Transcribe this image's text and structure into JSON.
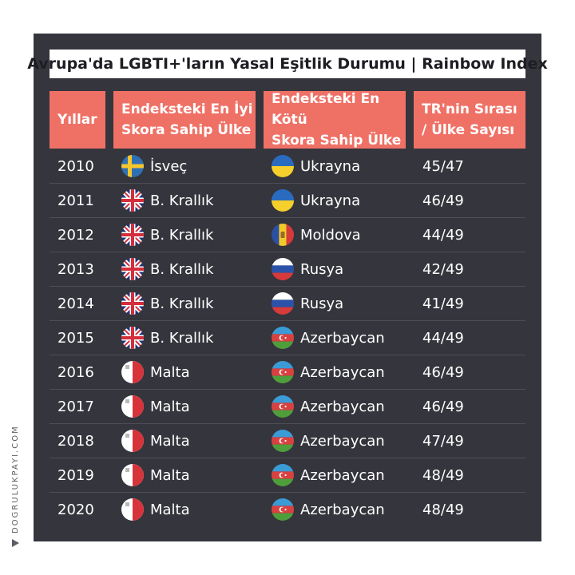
{
  "title": "Avrupa'da LGBTI+'ların Yasal Eşitlik Durumu | Rainbow Index",
  "headers": {
    "years": "Yıllar",
    "best_line1": "Endeksteki En İyi",
    "best_line2": "Skora Sahip Ülke",
    "worst_line1": "Endeksteki En Kötü",
    "worst_line2": "Skora Sahip Ülke",
    "tr_line1": "TR'nin Sırası",
    "tr_line2": "/ Ülke Sayısı"
  },
  "rows": [
    {
      "year": "2010",
      "best": "İsveç",
      "best_flag": "sweden-flag-icon",
      "worst": "Ukrayna",
      "worst_flag": "ukraine-flag-icon",
      "rank": "45/47"
    },
    {
      "year": "2011",
      "best": "B. Krallık",
      "best_flag": "uk-flag-icon",
      "worst": "Ukrayna",
      "worst_flag": "ukraine-flag-icon",
      "rank": "46/49"
    },
    {
      "year": "2012",
      "best": "B. Krallık",
      "best_flag": "uk-flag-icon",
      "worst": "Moldova",
      "worst_flag": "moldova-flag-icon",
      "rank": "44/49"
    },
    {
      "year": "2013",
      "best": "B. Krallık",
      "best_flag": "uk-flag-icon",
      "worst": "Rusya",
      "worst_flag": "russia-flag-icon",
      "rank": "42/49"
    },
    {
      "year": "2014",
      "best": "B. Krallık",
      "best_flag": "uk-flag-icon",
      "worst": "Rusya",
      "worst_flag": "russia-flag-icon",
      "rank": "41/49"
    },
    {
      "year": "2015",
      "best": "B. Krallık",
      "best_flag": "uk-flag-icon",
      "worst": "Azerbaycan",
      "worst_flag": "azerbaijan-flag-icon",
      "rank": "44/49"
    },
    {
      "year": "2016",
      "best": "Malta",
      "best_flag": "malta-flag-icon",
      "worst": "Azerbaycan",
      "worst_flag": "azerbaijan-flag-icon",
      "rank": "46/49"
    },
    {
      "year": "2017",
      "best": "Malta",
      "best_flag": "malta-flag-icon",
      "worst": "Azerbaycan",
      "worst_flag": "azerbaijan-flag-icon",
      "rank": "46/49"
    },
    {
      "year": "2018",
      "best": "Malta",
      "best_flag": "malta-flag-icon",
      "worst": "Azerbaycan",
      "worst_flag": "azerbaijan-flag-icon",
      "rank": "47/49"
    },
    {
      "year": "2019",
      "best": "Malta",
      "best_flag": "malta-flag-icon",
      "worst": "Azerbaycan",
      "worst_flag": "azerbaijan-flag-icon",
      "rank": "48/49"
    },
    {
      "year": "2020",
      "best": "Malta",
      "best_flag": "malta-flag-icon",
      "worst": "Azerbaycan",
      "worst_flag": "azerbaijan-flag-icon",
      "rank": "48/49"
    }
  ],
  "credit": "DOGRULUKPAYI.COM",
  "colors": {
    "panel": "#35353d",
    "header": "#ef7166",
    "title_bg": "#ffffff"
  }
}
